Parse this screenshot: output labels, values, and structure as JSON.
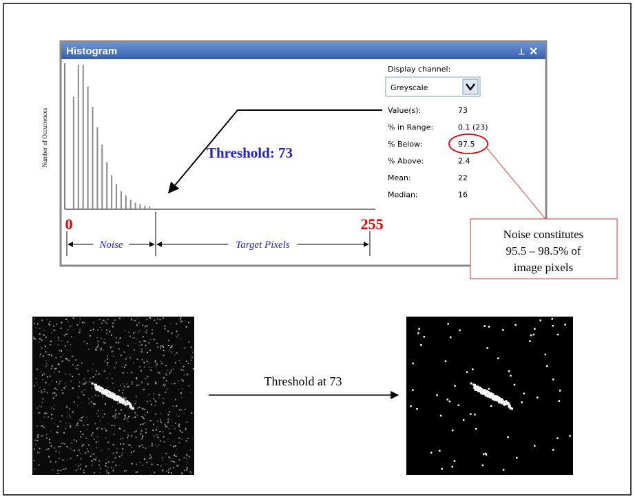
{
  "window": {
    "title": "Histogram"
  },
  "panel": {
    "display_channel_label": "Display channel:",
    "channel": "Greyscale",
    "stats": [
      [
        "Value(s):",
        "73"
      ],
      [
        "% in Range:",
        "0.1 (23)"
      ],
      [
        "% Below:",
        "97.5"
      ],
      [
        "% Above:",
        "2.4"
      ],
      [
        "Mean:",
        "22"
      ],
      [
        "Median:",
        "16"
      ]
    ]
  },
  "histogram": {
    "y_label": "Number of Occurrences",
    "x": [
      4,
      8,
      12,
      16,
      20,
      24,
      28,
      32,
      36,
      40,
      44,
      48,
      52,
      56,
      60,
      64,
      68
    ],
    "values": [
      77,
      99,
      99,
      84,
      70,
      56,
      44,
      32,
      23,
      17,
      12,
      9,
      6,
      4,
      3,
      2,
      1.5
    ],
    "xlim": [
      0,
      255
    ],
    "ylim": [
      0,
      100
    ],
    "xticks": [
      0,
      255
    ],
    "threshold": 73,
    "threshold_label": "Threshold: 73",
    "noise_label": "Noise",
    "target_label": "Target Pixels"
  },
  "callout": {
    "lines": [
      "Noise constitutes",
      "95.5 – 98.5% of",
      "image pixels"
    ]
  },
  "transform": {
    "label": "Threshold at 73"
  }
}
